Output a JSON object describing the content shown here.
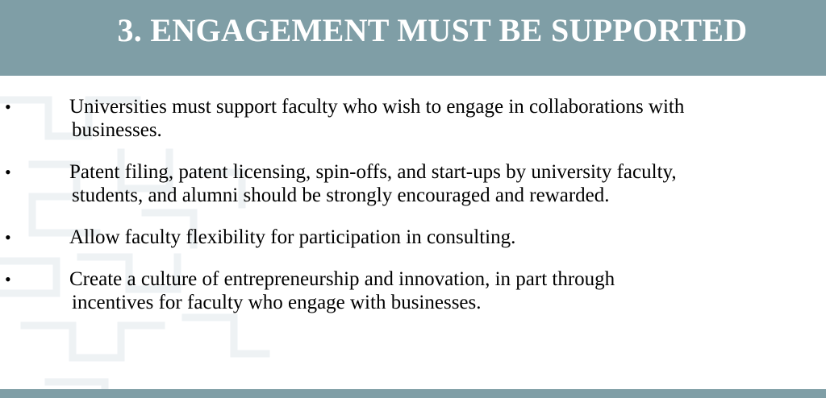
{
  "slide": {
    "title": "3. ENGAGEMENT MUST BE SUPPORTED",
    "bullet_symbol": "•",
    "bullets": [
      {
        "lines": [
          "Universities must support faculty who wish to engage in collaborations with",
          "businesses."
        ]
      },
      {
        "lines": [
          "Patent filing, patent licensing, spin-offs, and start-ups by university faculty,",
          "students, and alumni should be strongly encouraged and rewarded."
        ]
      },
      {
        "lines": [
          "Allow faculty flexibility for participation in consulting."
        ]
      },
      {
        "lines": [
          "Create a culture of entrepreneurship and innovation, in part through",
          "incentives for faculty who engage with businesses."
        ]
      }
    ]
  },
  "colors": {
    "band": "#7f9ea6",
    "title_text": "#ffffff",
    "body_text": "#000000",
    "pattern": "#eef2f4"
  }
}
